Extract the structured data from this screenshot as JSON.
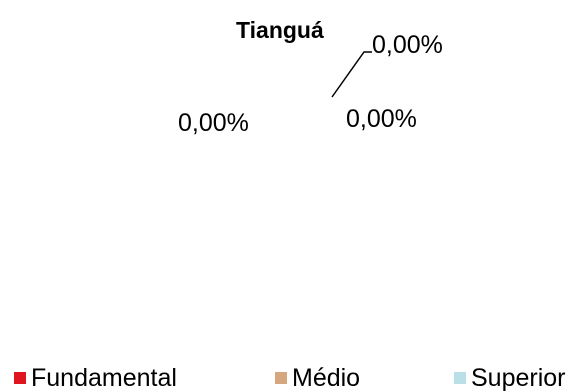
{
  "chart_data": {
    "type": "pie",
    "title": "Tianguá",
    "categories": [
      "Fundamental",
      "Médio",
      "Superior"
    ],
    "values": [
      0,
      0,
      0
    ],
    "data_labels": [
      "0,00%",
      "0,00%",
      "0,00%"
    ],
    "colors": [
      "#e0141e",
      "#d6a77e",
      "#b8e0e6"
    ],
    "legend_position": "bottom"
  }
}
